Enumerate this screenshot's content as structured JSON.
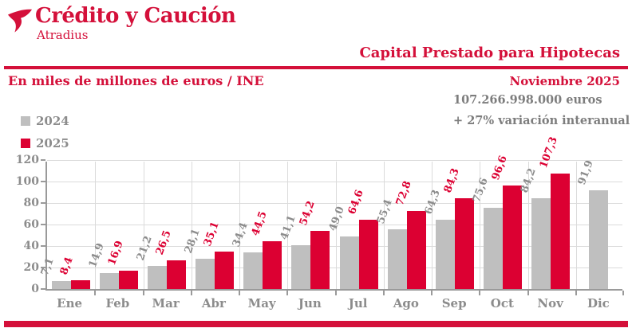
{
  "brand": {
    "name": "Crédito y Caución",
    "sub": "Atradius"
  },
  "header": {
    "title": "Capital Prestado para Hipotecas",
    "unit_note": "En miles de millones de euros / INE",
    "period": "Noviembre 2025"
  },
  "stats": {
    "amount": "107.266.998.000 euros",
    "variation": "+ 27% variación interanual"
  },
  "colors": {
    "accent_red": "#D4103A",
    "bar_2024": "#BFBFBF",
    "bar_2025": "#DC0032",
    "label_gray": "#8C8C8C",
    "stats_gray": "#7D7D7D",
    "grid": "#DBDBDB",
    "axis": "#9A9A9A"
  },
  "icons": {
    "logo": "bird-icon"
  },
  "chart_data": {
    "type": "bar",
    "title": "Capital Prestado para Hipotecas",
    "subtitle": "En miles de millones de euros / INE",
    "categories": [
      "Ene",
      "Feb",
      "Mar",
      "Abr",
      "May",
      "Jun",
      "Jul",
      "Ago",
      "Sep",
      "Oct",
      "Nov",
      "Dic"
    ],
    "series": [
      {
        "name": "2024",
        "color": "#BFBFBF",
        "values": [
          7.1,
          14.9,
          21.2,
          28.1,
          34.4,
          41.1,
          49.0,
          55.4,
          64.3,
          75.6,
          84.2,
          91.9
        ]
      },
      {
        "name": "2025",
        "color": "#DC0032",
        "values": [
          8.4,
          16.9,
          26.5,
          35.1,
          44.5,
          54.2,
          64.6,
          72.8,
          84.3,
          96.6,
          107.3,
          null
        ]
      }
    ],
    "value_label_format": "decimal-comma, one decimal, rotated -70deg",
    "xlabel": "",
    "ylabel": "",
    "ylim": [
      0,
      120
    ],
    "yticks": [
      0,
      20,
      40,
      60,
      80,
      100,
      120
    ],
    "grid": true,
    "legend_position": "top-left"
  }
}
